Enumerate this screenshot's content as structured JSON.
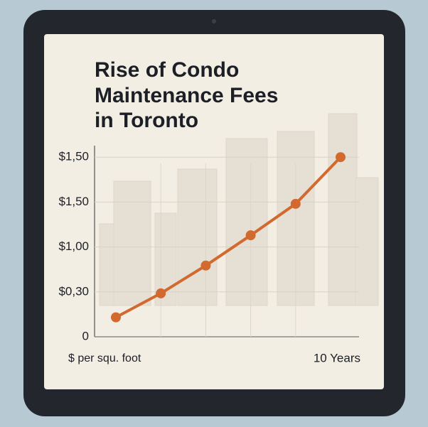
{
  "chart_data": {
    "type": "line",
    "title": [
      "Rise of Condo",
      "Maintenance Fees",
      "in Toronto"
    ],
    "x_label": "$ per squ. foot",
    "x_end_label": "10 Years",
    "categories": [
      null,
      null,
      null,
      null,
      null,
      null
    ],
    "series": [
      {
        "color": "#d2692e",
        "values": [
          0.13,
          0.29,
          0.71,
          1.13,
          1.48,
          1.5
        ]
      }
    ],
    "yticks": [
      0,
      {
        "value": 0.3,
        "label": "$0,30"
      },
      {
        "value": 1.0,
        "label": "$1,00"
      },
      {
        "value": 1.5,
        "label": "$1,50"
      },
      {
        "value": 1.5,
        "label": "$1,50"
      }
    ],
    "grid": true
  }
}
